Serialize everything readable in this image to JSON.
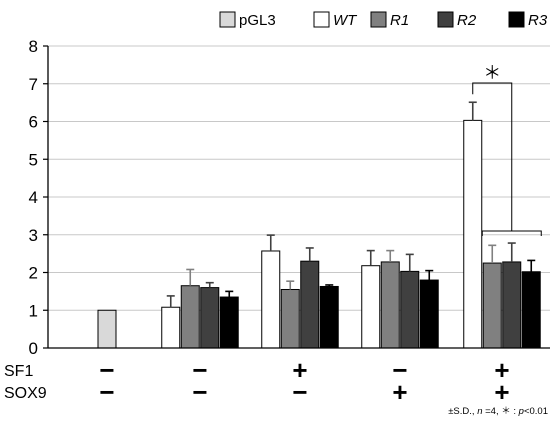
{
  "chart_data": {
    "type": "bar",
    "ylim": [
      0,
      8
    ],
    "yticks": [
      "0",
      "1",
      "2",
      "3",
      "4",
      "5",
      "6",
      "7",
      "8"
    ],
    "grid": true,
    "legend_position": "top",
    "series": [
      {
        "name": "pGL3",
        "italic": false,
        "color": "#d9d9d9",
        "values": [
          1.0,
          null,
          null,
          null,
          null
        ],
        "errors": [
          0,
          null,
          null,
          null,
          null
        ]
      },
      {
        "name": "WT",
        "italic": true,
        "color": "#ffffff",
        "values": [
          null,
          1.08,
          2.57,
          2.18,
          6.03
        ],
        "errors": [
          null,
          0.3,
          0.42,
          0.4,
          0.48
        ]
      },
      {
        "name": "R1",
        "italic": true,
        "color": "#808080",
        "values": [
          null,
          1.65,
          1.55,
          2.28,
          2.25
        ],
        "errors": [
          null,
          0.43,
          0.22,
          0.3,
          0.47
        ]
      },
      {
        "name": "R2",
        "italic": true,
        "color": "#404040",
        "values": [
          null,
          1.6,
          2.3,
          2.03,
          2.28
        ],
        "errors": [
          null,
          0.13,
          0.35,
          0.45,
          0.5
        ]
      },
      {
        "name": "R3",
        "italic": true,
        "color": "#000000",
        "values": [
          null,
          1.35,
          1.63,
          1.8,
          2.02
        ],
        "errors": [
          null,
          0.15,
          0.04,
          0.25,
          0.3
        ]
      }
    ],
    "conditions": [
      {
        "label": "SF1",
        "signs": [
          "−",
          "−",
          "+",
          "−",
          "+"
        ]
      },
      {
        "label": "SOX9",
        "signs": [
          "−",
          "−",
          "−",
          "+",
          "+"
        ]
      }
    ],
    "significance": {
      "symbol": "＊"
    },
    "footnote": {
      "pre": "±S.D., ",
      "n": "n",
      "mid": " =4, ＊ : ",
      "p": "p",
      "post": "<0.01"
    }
  }
}
